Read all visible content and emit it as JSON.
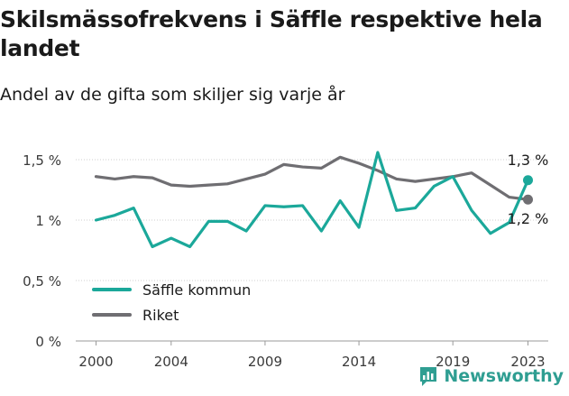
{
  "title": "Skilsmässofrekvens i Säffle respektive hela landet",
  "subtitle": "Andel av de gifta som skiljer sig varje år",
  "brand": {
    "name": "Newsworthy"
  },
  "colors": {
    "saffle": "#1ba89a",
    "riket": "#6f6e72",
    "grid": "#cfcfcf",
    "axis": "#9a9a9a"
  },
  "chart_data": {
    "type": "line",
    "x": [
      2000,
      2001,
      2002,
      2003,
      2004,
      2005,
      2006,
      2007,
      2008,
      2009,
      2010,
      2011,
      2012,
      2013,
      2014,
      2015,
      2016,
      2017,
      2018,
      2019,
      2020,
      2021,
      2022,
      2023
    ],
    "x_ticks": [
      2000,
      2004,
      2009,
      2014,
      2019,
      2023
    ],
    "x_tick_labels": [
      "2000",
      "2004",
      "2009",
      "2014",
      "2019",
      "2023"
    ],
    "y_ticks": [
      0,
      0.5,
      1.0,
      1.5
    ],
    "y_tick_labels": [
      "0 %",
      "0,5 %",
      "1 %",
      "1,5 %"
    ],
    "ylim": [
      0,
      1.5
    ],
    "grid": "horizontal",
    "legend_position": "bottom-left",
    "series": [
      {
        "name": "Säffle kommun",
        "color_key": "saffle",
        "values": [
          1.0,
          1.04,
          1.1,
          0.78,
          0.85,
          0.78,
          0.99,
          0.99,
          0.91,
          1.12,
          1.11,
          1.12,
          0.91,
          1.16,
          0.94,
          1.56,
          1.08,
          1.1,
          1.28,
          1.36,
          1.08,
          0.89,
          0.98,
          1.33
        ],
        "end_label": "1,3 %"
      },
      {
        "name": "Riket",
        "color_key": "riket",
        "values": [
          1.36,
          1.34,
          1.36,
          1.35,
          1.29,
          1.28,
          1.29,
          1.3,
          1.34,
          1.38,
          1.46,
          1.44,
          1.43,
          1.52,
          1.47,
          1.41,
          1.34,
          1.32,
          1.34,
          1.36,
          1.39,
          1.29,
          1.19,
          1.17
        ],
        "end_label": "1,2 %"
      }
    ]
  }
}
